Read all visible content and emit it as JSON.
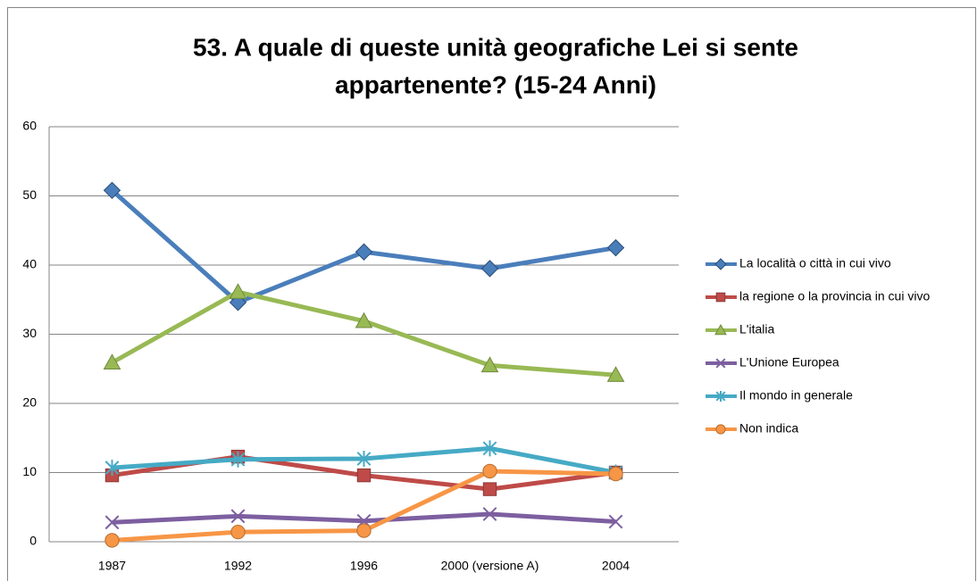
{
  "chart_data": {
    "type": "line",
    "title_lines": [
      "53. A quale di queste unità geografiche Lei si sente",
      "appartenente? (15-24 Anni)"
    ],
    "categories": [
      "1987",
      "1992",
      "1996",
      "2000 (versione A)",
      "2004"
    ],
    "ylim": [
      0,
      60
    ],
    "yticks": [
      0,
      10,
      20,
      30,
      40,
      50,
      60
    ],
    "grid": true,
    "legend": "right",
    "series": [
      {
        "name": "La località o città in cui vivo",
        "color": "#4a7ebb",
        "marker": "diamond",
        "values": [
          50.8,
          34.6,
          41.9,
          39.5,
          42.5
        ]
      },
      {
        "name": "la regione o la provincia in cui vivo",
        "color": "#be4b48",
        "marker": "square",
        "values": [
          9.6,
          12.3,
          9.6,
          7.6,
          10
        ]
      },
      {
        "name": "L'italia",
        "color": "#98b954",
        "marker": "triangle",
        "values": [
          25.9,
          36.1,
          31.9,
          25.5,
          24.1
        ]
      },
      {
        "name": "L'Unione Europea",
        "color": "#7d5fa0",
        "marker": "x",
        "values": [
          2.8,
          3.7,
          3,
          4,
          2.9
        ]
      },
      {
        "name": "Il mondo in generale",
        "color": "#46aac5",
        "marker": "star",
        "values": [
          10.7,
          11.9,
          12,
          13.5,
          10
        ]
      },
      {
        "name": "Non indica",
        "color": "#f79646",
        "marker": "circle",
        "values": [
          0.2,
          1.4,
          1.6,
          10.2,
          9.8
        ]
      }
    ]
  }
}
